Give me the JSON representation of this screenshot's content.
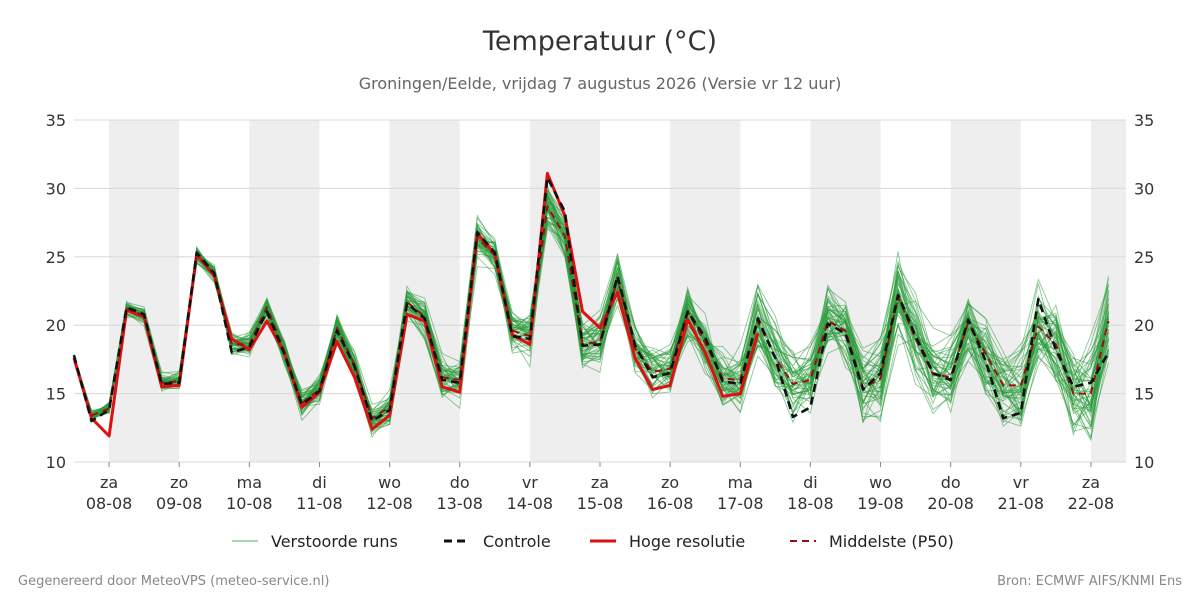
{
  "chart_data": {
    "type": "line",
    "title": "Temperatuur (°C)",
    "subtitle": "Groningen/Eelde, vrijdag  7 augustus 2026 (Versie vr 12 uur)",
    "ylim": [
      10,
      35
    ],
    "yticks": [
      10,
      15,
      20,
      25,
      30,
      35
    ],
    "grid": true,
    "legend_position": "bottom",
    "time_axis": {
      "start": "2026-08-07 12:00",
      "end": "2026-08-22 12:00",
      "step_hours": 6
    },
    "x_ticks": [
      {
        "date": "2026-08-08",
        "day": "za",
        "label": "08-08"
      },
      {
        "date": "2026-08-09",
        "day": "zo",
        "label": "09-08"
      },
      {
        "date": "2026-08-10",
        "day": "ma",
        "label": "10-08"
      },
      {
        "date": "2026-08-11",
        "day": "di",
        "label": "11-08"
      },
      {
        "date": "2026-08-12",
        "day": "wo",
        "label": "12-08"
      },
      {
        "date": "2026-08-13",
        "day": "do",
        "label": "13-08"
      },
      {
        "date": "2026-08-14",
        "day": "vr",
        "label": "14-08"
      },
      {
        "date": "2026-08-15",
        "day": "za",
        "label": "15-08"
      },
      {
        "date": "2026-08-16",
        "day": "zo",
        "label": "16-08"
      },
      {
        "date": "2026-08-17",
        "day": "ma",
        "label": "17-08"
      },
      {
        "date": "2026-08-18",
        "day": "di",
        "label": "18-08"
      },
      {
        "date": "2026-08-19",
        "day": "wo",
        "label": "19-08"
      },
      {
        "date": "2026-08-20",
        "day": "do",
        "label": "20-08"
      },
      {
        "date": "2026-08-21",
        "day": "vr",
        "label": "21-08"
      },
      {
        "date": "2026-08-22",
        "day": "za",
        "label": "22-08"
      }
    ],
    "shaded_days": [
      "2026-08-08",
      "2026-08-10",
      "2026-08-12",
      "2026-08-14",
      "2026-08-16",
      "2026-08-18",
      "2026-08-20",
      "2026-08-22"
    ],
    "series": [
      {
        "name": "Controle",
        "color": "#111111",
        "style": "dashed",
        "values": [
          17.8,
          13.0,
          13.8,
          21.3,
          20.8,
          15.7,
          15.8,
          25.3,
          23.8,
          18.0,
          18.4,
          21.0,
          17.9,
          14.2,
          15.2,
          19.6,
          17.0,
          13.0,
          13.8,
          21.6,
          20.5,
          16.0,
          15.8,
          26.8,
          25.3,
          19.2,
          19.0,
          30.8,
          28.3,
          18.5,
          18.6,
          23.6,
          18.5,
          16.2,
          16.5,
          21.0,
          19.1,
          15.9,
          15.7,
          20.5,
          17.6,
          13.3,
          14.0,
          20.1,
          19.4,
          15.3,
          16.5,
          22.2,
          19.2,
          16.5,
          16.0,
          20.4,
          17.4,
          13.2,
          13.6,
          21.9,
          18.2,
          15.5,
          15.8,
          18.0
        ]
      },
      {
        "name": "Hoge resolutie",
        "color": "#dd1111",
        "style": "solid",
        "values": [
          17.6,
          13.2,
          11.9,
          21.1,
          20.6,
          15.5,
          15.6,
          25.2,
          23.6,
          19.0,
          18.2,
          20.3,
          18.0,
          14.0,
          15.1,
          18.8,
          16.2,
          12.4,
          13.4,
          20.8,
          20.3,
          15.5,
          15.1,
          26.7,
          25.2,
          19.3,
          18.6,
          31.1,
          28.0,
          21.0,
          19.8,
          22.4,
          17.6,
          15.3,
          15.6,
          20.4,
          18.0,
          14.8,
          15.0,
          19.4
        ]
      },
      {
        "name": "Middelste (P50)",
        "color": "#991111",
        "style": "dashed",
        "values": [
          17.6,
          13.4,
          13.9,
          21.2,
          20.7,
          15.8,
          15.9,
          25.1,
          23.7,
          18.6,
          18.6,
          21.3,
          18.1,
          14.3,
          15.3,
          19.8,
          17.1,
          13.2,
          14.0,
          21.7,
          20.6,
          16.2,
          16.0,
          26.4,
          25.1,
          19.6,
          19.2,
          28.7,
          26.5,
          18.6,
          18.8,
          23.4,
          18.3,
          16.6,
          16.8,
          21.0,
          18.7,
          16.1,
          16.0,
          20.3,
          17.6,
          15.7,
          16.0,
          20.3,
          19.6,
          15.4,
          16.1,
          22.1,
          19.0,
          16.4,
          16.2,
          20.2,
          17.9,
          15.6,
          15.6,
          19.9,
          18.6,
          15.0,
          15.0,
          20.3
        ]
      }
    ],
    "ensemble": {
      "name": "Verstoorde runs",
      "color": "#2a9a3a",
      "members": 50
    }
  },
  "legend": [
    {
      "label": "Verstoorde runs",
      "color": "#2a9a3a",
      "style": "thin"
    },
    {
      "label": "Controle",
      "color": "#111111",
      "style": "dashed"
    },
    {
      "label": "Hoge resolutie",
      "color": "#dd1111",
      "style": "solid"
    },
    {
      "label": "Middelste (P50)",
      "color": "#991111",
      "style": "dashed"
    }
  ],
  "footer": {
    "left": "Gegenereerd door MeteoVPS (meteo-service.nl)",
    "right": "Bron: ECMWF AIFS/KNMI Ens"
  }
}
